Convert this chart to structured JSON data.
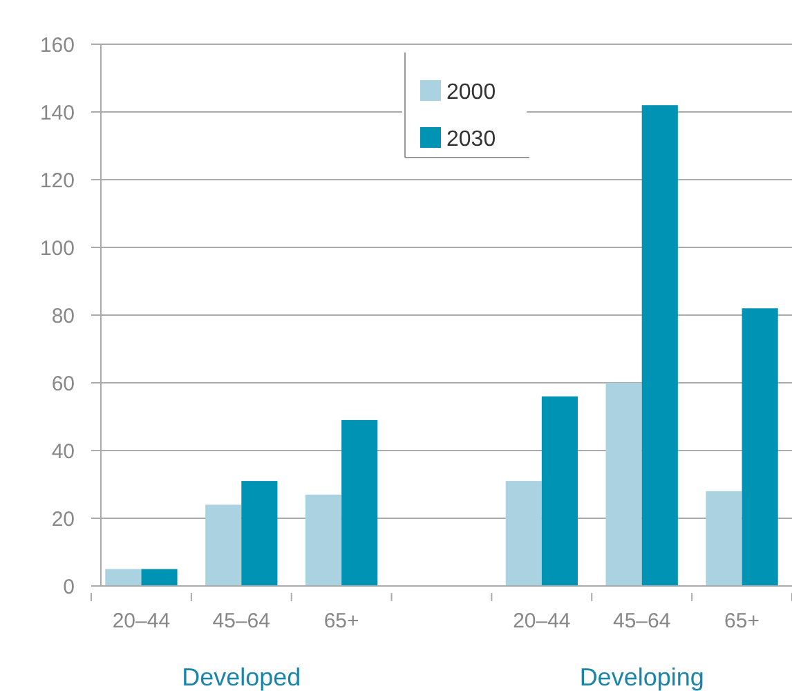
{
  "chart_data": {
    "type": "bar",
    "categories": [
      "20–44",
      "45–64",
      "65+",
      null,
      "20–44",
      "45–64",
      "65+"
    ],
    "series": [
      {
        "name": "2000",
        "color": "#abd2e0",
        "values": [
          5,
          24,
          27,
          null,
          31,
          60,
          28
        ]
      },
      {
        "name": "2030",
        "color": "#0093b3",
        "values": [
          5,
          31,
          49,
          null,
          56,
          142,
          82
        ]
      }
    ],
    "ylim": [
      0,
      160
    ],
    "yticks": [
      0,
      20,
      40,
      60,
      80,
      100,
      120,
      140,
      160
    ],
    "grid": "y",
    "legend": "top",
    "annotations": [
      "Developed",
      "Developing"
    ]
  }
}
